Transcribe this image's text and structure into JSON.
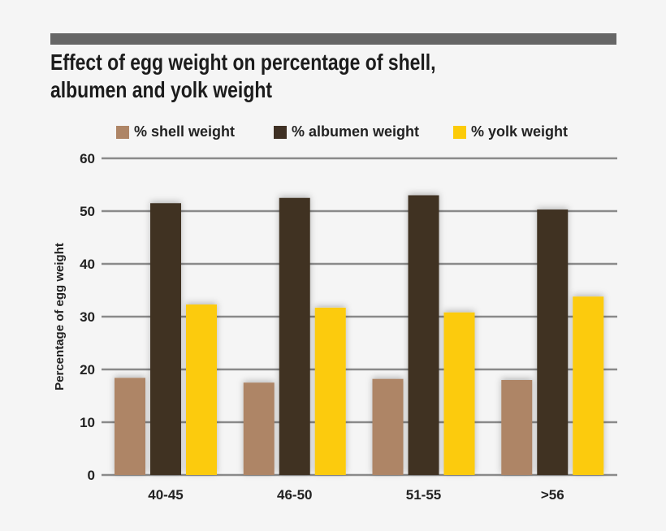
{
  "chart_data": {
    "type": "bar",
    "title": "Effect of egg weight on percentage of shell, albumen and yolk weight",
    "title_lines": [
      "Effect of egg weight on percentage of shell,",
      "albumen and yolk weight"
    ],
    "xlabel": "",
    "ylabel": "Percentage of egg weight",
    "ylim": [
      0,
      60
    ],
    "yticks": [
      "0",
      "10",
      "20",
      "30",
      "40",
      "50",
      "60"
    ],
    "grid": true,
    "legend_position": "top",
    "categories": [
      "40-45",
      "46-50",
      "51-55",
      ">56"
    ],
    "series": [
      {
        "name": "% shell weight",
        "color": "#ae8566",
        "values": [
          18.4,
          17.5,
          18.2,
          18.0
        ]
      },
      {
        "name": "% albumen weight",
        "color": "#3f3024",
        "values": [
          51.5,
          52.5,
          53.0,
          50.3
        ]
      },
      {
        "name": "% yolk weight",
        "color": "#fccb08",
        "values": [
          32.3,
          31.7,
          30.8,
          33.8
        ]
      }
    ]
  }
}
